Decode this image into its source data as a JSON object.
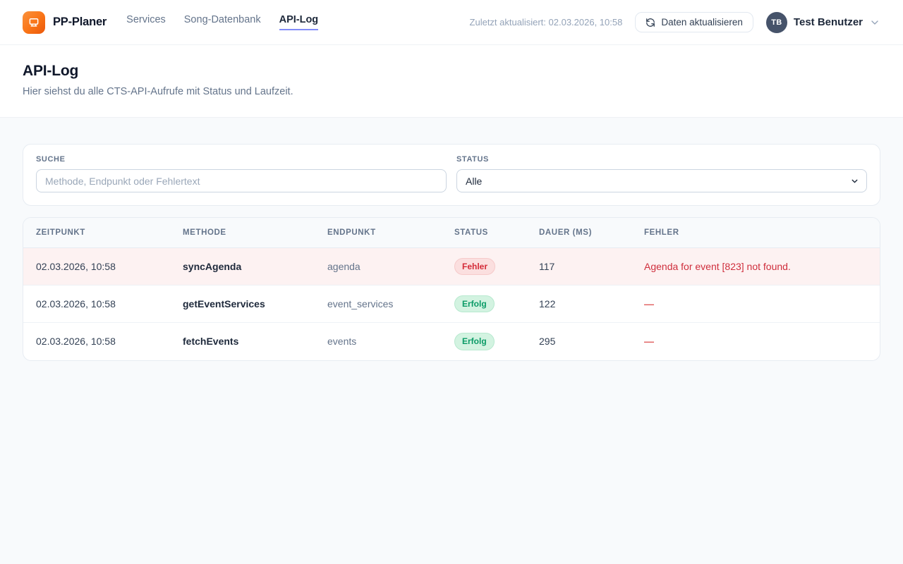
{
  "app": {
    "brand": "PP-Planer",
    "nav": [
      {
        "label": "Services",
        "active": false
      },
      {
        "label": "Song-Datenbank",
        "active": false
      },
      {
        "label": "API-Log",
        "active": true
      }
    ],
    "last_updated": "Zuletzt aktualisiert: 02.03.2026, 10:58",
    "refresh_button_label": "Daten aktualisieren",
    "user": {
      "initials": "TB",
      "name": "Test Benutzer"
    }
  },
  "page": {
    "title": "API-Log",
    "subtitle": "Hier siehst du alle CTS-API-Aufrufe mit Status und Laufzeit."
  },
  "filters": {
    "search_label": "SUCHE",
    "search_placeholder": "Methode, Endpunkt oder Fehlertext",
    "status_label": "STATUS",
    "status_value": "Alle"
  },
  "table": {
    "columns": [
      "ZEITPUNKT",
      "METHODE",
      "ENDPUNKT",
      "STATUS",
      "DAUER (MS)",
      "FEHLER"
    ],
    "rows": [
      {
        "zeitpunkt": "02.03.2026, 10:58",
        "methode": "syncAgenda",
        "endpunkt": "agenda",
        "status": "Fehler",
        "status_type": "error",
        "dauer": "117",
        "fehler": "Agenda for event [823] not found."
      },
      {
        "zeitpunkt": "02.03.2026, 10:58",
        "methode": "getEventServices",
        "endpunkt": "event_services",
        "status": "Erfolg",
        "status_type": "success",
        "dauer": "122",
        "fehler": "—"
      },
      {
        "zeitpunkt": "02.03.2026, 10:58",
        "methode": "fetchEvents",
        "endpunkt": "events",
        "status": "Erfolg",
        "status_type": "success",
        "dauer": "295",
        "fehler": "—"
      }
    ]
  },
  "colors": {
    "brand_orange": "#f97316",
    "nav_accent_underline": "#818cf8",
    "error_text": "#d42b38",
    "error_badge_bg": "#fbdfdf",
    "error_row_bg": "#fdf2f2",
    "success_text": "#0a9b66",
    "success_badge_bg": "#d3f3e1",
    "page_bg": "#f8fafc"
  },
  "icons": {
    "logo": "screen-board-icon",
    "refresh": "refresh-icon",
    "user_chevron": "chevron-down-icon",
    "select_chevron": "chevron-down-icon"
  }
}
